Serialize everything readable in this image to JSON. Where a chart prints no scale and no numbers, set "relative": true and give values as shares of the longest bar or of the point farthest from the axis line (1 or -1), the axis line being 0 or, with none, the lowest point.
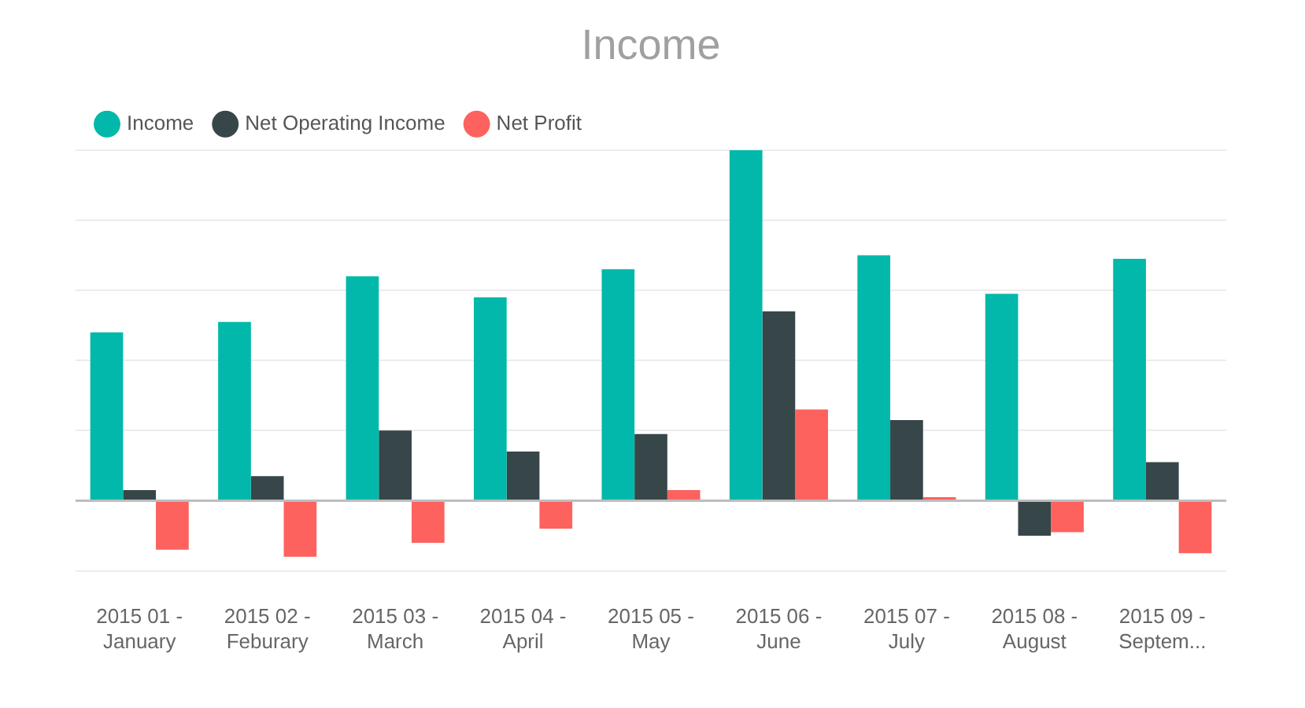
{
  "chart_data": {
    "type": "bar",
    "title": "Income",
    "categories": [
      "2015 01 - January",
      "2015 02 - Feburary",
      "2015 03 - March",
      "2015 04 - April",
      "2015 05 - May",
      "2015 06 - June",
      "2015 07 - July",
      "2015 08 - August",
      "2015 09 - Septem..."
    ],
    "series": [
      {
        "name": "Income",
        "color": "#01b8aa",
        "values": [
          0.48,
          0.51,
          0.64,
          0.58,
          0.66,
          1,
          0.7,
          0.59,
          0.69
        ]
      },
      {
        "name": "Net Operating Income",
        "color": "#374649",
        "values": [
          0.03,
          0.07,
          0.2,
          0.14,
          0.19,
          0.54,
          0.23,
          -0.1,
          0.11
        ]
      },
      {
        "name": "Net Profit",
        "color": "#fd625e",
        "values": [
          -0.14,
          -0.16,
          -0.12,
          -0.08,
          0.03,
          0.26,
          0.01,
          -0.09,
          -0.15
        ]
      }
    ],
    "relative": true,
    "legend": "top left",
    "grid": "y"
  }
}
